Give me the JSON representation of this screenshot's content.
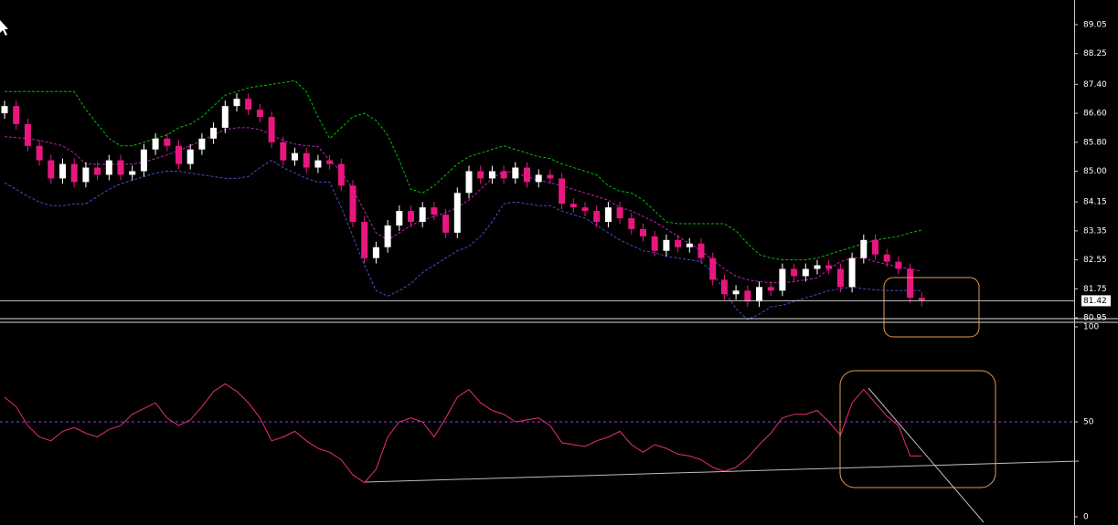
{
  "chart_data": {
    "type": "candlestick",
    "up_color": "#ffffff",
    "down_color": "#e8177f",
    "ylim": [
      80.85,
      89.73
    ],
    "yticks": [
      89.05,
      88.25,
      {
        "value": 87.4,
        "label": "87.40"
      },
      {
        "value": 86.6,
        "label": "86.60"
      },
      {
        "value": 85.8,
        "label": "85.80"
      },
      {
        "value": 85,
        "label": "85.00"
      },
      84.15,
      83.35,
      82.55,
      81.75,
      80.95
    ],
    "last_price": 81.42,
    "open": [
      86.6,
      86.8,
      86.3,
      85.7,
      85.3,
      84.8,
      85.2,
      84.7,
      85.1,
      84.9,
      85.3,
      84.9,
      85.0,
      85.6,
      85.9,
      85.7,
      85.2,
      85.6,
      85.9,
      86.2,
      86.8,
      87.0,
      86.7,
      86.5,
      85.8,
      85.3,
      85.5,
      85.1,
      85.3,
      85.2,
      84.6,
      83.6,
      82.6,
      82.9,
      83.5,
      83.9,
      83.6,
      84.0,
      83.8,
      83.3,
      84.4,
      85.0,
      84.8,
      85.0,
      84.8,
      85.1,
      84.7,
      84.9,
      84.8,
      84.1,
      84.0,
      83.9,
      83.6,
      84.0,
      83.7,
      83.4,
      83.2,
      82.8,
      83.1,
      82.9,
      83.0,
      82.6,
      82.0,
      81.6,
      81.7,
      81.4,
      81.8,
      81.7,
      82.3,
      82.1,
      82.3,
      82.4,
      82.3,
      81.8,
      82.6,
      83.1,
      82.7,
      82.5,
      82.3,
      81.5
    ],
    "high": [
      86.95,
      86.95,
      86.45,
      85.85,
      85.45,
      85.35,
      85.35,
      85.25,
      85.25,
      85.45,
      85.45,
      85.15,
      85.75,
      86.05,
      86.05,
      85.85,
      85.75,
      86.05,
      86.35,
      86.95,
      87.15,
      87.15,
      86.85,
      86.65,
      85.95,
      85.65,
      85.65,
      85.45,
      85.45,
      85.35,
      84.75,
      83.75,
      83.05,
      83.65,
      84.05,
      84.05,
      84.15,
      84.15,
      83.95,
      84.55,
      85.15,
      85.15,
      85.15,
      85.15,
      85.25,
      85.25,
      85.05,
      85.05,
      84.95,
      84.25,
      84.15,
      84.05,
      84.15,
      84.15,
      83.85,
      83.55,
      83.35,
      83.25,
      83.25,
      83.15,
      83.15,
      82.75,
      82.15,
      81.85,
      81.85,
      81.95,
      81.95,
      82.45,
      82.45,
      82.45,
      82.55,
      82.55,
      82.45,
      82.75,
      83.25,
      83.25,
      82.85,
      82.65,
      82.45,
      81.65
    ],
    "low": [
      86.45,
      86.15,
      85.55,
      85.15,
      84.65,
      84.65,
      84.55,
      84.55,
      84.75,
      84.75,
      84.75,
      84.75,
      84.85,
      85.45,
      85.55,
      85.05,
      85.05,
      85.45,
      85.75,
      86.05,
      86.65,
      86.55,
      86.35,
      85.65,
      85.15,
      85.15,
      84.95,
      84.95,
      85.05,
      84.45,
      83.45,
      82.45,
      82.45,
      82.75,
      83.35,
      83.45,
      83.45,
      83.65,
      83.15,
      83.15,
      84.25,
      84.65,
      84.65,
      84.65,
      84.65,
      84.55,
      84.55,
      84.65,
      83.95,
      83.85,
      83.75,
      83.45,
      83.45,
      83.55,
      83.25,
      83.05,
      82.65,
      82.65,
      82.75,
      82.75,
      82.45,
      81.85,
      81.45,
      81.45,
      81.25,
      81.25,
      81.55,
      81.55,
      81.95,
      81.95,
      82.15,
      82.15,
      81.65,
      81.65,
      82.45,
      82.55,
      82.35,
      82.15,
      81.35,
      81.27
    ],
    "close": [
      86.8,
      86.3,
      85.7,
      85.3,
      84.8,
      85.2,
      84.7,
      85.1,
      84.9,
      85.3,
      84.9,
      85.0,
      85.6,
      85.9,
      85.7,
      85.2,
      85.6,
      85.9,
      86.2,
      86.8,
      87.0,
      86.7,
      86.5,
      85.8,
      85.3,
      85.5,
      85.1,
      85.3,
      85.2,
      84.6,
      83.6,
      82.6,
      82.9,
      83.5,
      83.9,
      83.6,
      84.0,
      83.8,
      83.3,
      84.4,
      85.0,
      84.8,
      85.0,
      84.8,
      85.1,
      84.7,
      84.9,
      84.8,
      84.1,
      84.0,
      83.9,
      83.6,
      84.0,
      83.7,
      83.4,
      83.2,
      82.8,
      83.1,
      82.9,
      83.0,
      82.6,
      82.0,
      81.6,
      81.7,
      81.4,
      81.8,
      81.7,
      82.3,
      82.1,
      82.3,
      82.4,
      82.3,
      81.8,
      82.6,
      83.1,
      82.7,
      82.5,
      82.3,
      81.5,
      81.42
    ],
    "bands": [
      {
        "color": "#00c000",
        "values": [
          87.2,
          87.2,
          87.2,
          87.2,
          87.2,
          87.2,
          87.2,
          86.7,
          86.3,
          85.9,
          85.7,
          85.7,
          85.8,
          85.9,
          86.0,
          86.2,
          86.3,
          86.5,
          86.8,
          87.1,
          87.2,
          87.3,
          87.35,
          87.4,
          87.45,
          87.5,
          87.2,
          86.5,
          85.9,
          86.2,
          86.5,
          86.6,
          86.4,
          86.0,
          85.3,
          84.5,
          84.4,
          84.6,
          84.9,
          85.2,
          85.4,
          85.5,
          85.6,
          85.7,
          85.6,
          85.5,
          85.4,
          85.35,
          85.2,
          85.1,
          85.0,
          84.9,
          84.6,
          84.45,
          84.4,
          84.2,
          83.9,
          83.6,
          83.55,
          83.55,
          83.55,
          83.55,
          83.55,
          83.35,
          83.0,
          82.7,
          82.6,
          82.55,
          82.55,
          82.55,
          82.6,
          82.7,
          82.8,
          82.9,
          83.0,
          83.1,
          83.15,
          83.2,
          83.3,
          83.37
        ]
      },
      {
        "color": "#c020c0",
        "values": [
          85.95,
          85.93,
          85.9,
          85.85,
          85.78,
          85.7,
          85.5,
          85.2,
          85.19,
          85.19,
          85.19,
          85.2,
          85.25,
          85.35,
          85.45,
          85.57,
          85.7,
          85.85,
          86.0,
          86.15,
          86.2,
          86.2,
          86.15,
          86.0,
          85.85,
          85.75,
          85.7,
          85.68,
          85.3,
          85.0,
          84.5,
          83.9,
          83.3,
          83.1,
          83.3,
          83.5,
          83.65,
          83.75,
          83.85,
          84.0,
          84.2,
          84.5,
          84.8,
          85.0,
          84.95,
          84.85,
          84.75,
          84.68,
          84.6,
          84.5,
          84.4,
          84.3,
          84.2,
          84.0,
          83.9,
          83.75,
          83.6,
          83.4,
          83.2,
          83.0,
          82.8,
          82.55,
          82.3,
          82.1,
          82.0,
          81.95,
          81.92,
          81.92,
          81.95,
          82.0,
          82.05,
          82.3,
          82.5,
          82.6,
          82.6,
          82.5,
          82.43,
          82.35,
          82.3,
          82.24
        ]
      },
      {
        "color": "#4a4ad0",
        "values": [
          84.68,
          84.5,
          84.3,
          84.15,
          84.05,
          84.05,
          84.1,
          84.1,
          84.3,
          84.5,
          84.65,
          84.75,
          84.85,
          84.95,
          85.0,
          85.0,
          84.95,
          84.9,
          84.85,
          84.8,
          84.8,
          84.85,
          85.1,
          85.3,
          85.1,
          84.95,
          84.8,
          84.7,
          84.7,
          84.0,
          83.2,
          82.4,
          81.7,
          81.55,
          81.7,
          81.9,
          82.2,
          82.4,
          82.6,
          82.8,
          82.92,
          83.2,
          83.6,
          84.1,
          84.15,
          84.1,
          84.05,
          84.05,
          83.9,
          83.8,
          83.7,
          83.5,
          83.3,
          83.1,
          82.95,
          82.8,
          82.75,
          82.65,
          82.6,
          82.55,
          82.5,
          82.2,
          81.7,
          81.2,
          80.9,
          81.05,
          81.25,
          81.3,
          81.4,
          81.5,
          81.6,
          81.7,
          81.75,
          81.8,
          81.75,
          81.72,
          81.7,
          81.7,
          81.7,
          81.7
        ]
      }
    ],
    "rsi": {
      "color": "#e8306c",
      "level_color": "#9a3ad0",
      "ylim": [
        0,
        100
      ],
      "yticks": [
        100,
        50,
        0
      ],
      "values": [
        63,
        58,
        48,
        42,
        40,
        45,
        47,
        44,
        42,
        46,
        48,
        54,
        57,
        60,
        52,
        48,
        51,
        58,
        66,
        70,
        66,
        60,
        52,
        40,
        42,
        45,
        40,
        36,
        34,
        30,
        22,
        18,
        25,
        42,
        50,
        52,
        50,
        42,
        52,
        63,
        67,
        60,
        56,
        54,
        50,
        51,
        52,
        48,
        39,
        38,
        37,
        40,
        42,
        45,
        38,
        34,
        38,
        36,
        33,
        32,
        30,
        26,
        24,
        26,
        31,
        38,
        44,
        52,
        54,
        54,
        56,
        50,
        43,
        60,
        67,
        60,
        53,
        48,
        32,
        32
      ]
    }
  }
}
